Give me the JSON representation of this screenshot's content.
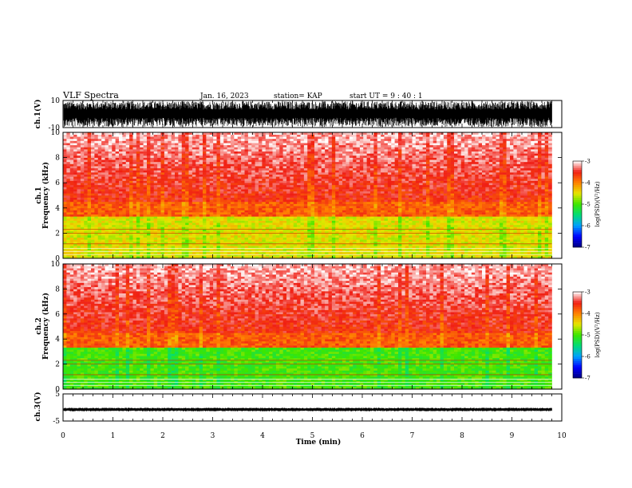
{
  "header": {
    "title": "VLF Spectra",
    "date": "Jan. 16, 2023",
    "station": "station= KAP",
    "start": "start  UT =   9 : 40 : 1"
  },
  "chart_data": [
    {
      "type": "line",
      "panel": "ch1-waveform",
      "ylabel": "ch.1(V)",
      "ylim": [
        -10,
        10
      ],
      "yticks": [
        "10",
        "-10"
      ],
      "xlim": [
        0,
        10
      ],
      "description_values": "dense waveform saturating near full scale"
    },
    {
      "type": "heatmap",
      "panel": "ch1-spectrogram",
      "ylabel": "ch.1\nFrequency (kHz)",
      "ylabel_line1": "ch.1",
      "ylabel_line2": "Frequency (kHz)",
      "ylim": [
        0,
        10
      ],
      "yticks": [
        "0",
        "2",
        "4",
        "6",
        "8",
        "10"
      ],
      "xlim": [
        0,
        9.8
      ],
      "colorbar": {
        "label": "log(PSD)(V²/Hz)",
        "range": [
          -7,
          -3
        ],
        "ticks": [
          "-3",
          "-4",
          "-5",
          "-6",
          "-7"
        ]
      },
      "bands": [
        {
          "from": 0,
          "to": 3.3,
          "level": -4.5
        },
        {
          "from": 3.3,
          "to": 4.5,
          "level": -3.8
        },
        {
          "from": 4.5,
          "to": 10,
          "level": -3.3
        }
      ]
    },
    {
      "type": "heatmap",
      "panel": "ch2-spectrogram",
      "ylabel_line1": "ch.2",
      "ylabel_line2": "Frequency (kHz)",
      "ylim": [
        0,
        10
      ],
      "yticks": [
        "0",
        "2",
        "4",
        "6",
        "8",
        "10"
      ],
      "xlim": [
        0,
        9.8
      ],
      "colorbar": {
        "label": "log(PSD)(V²/Hz)",
        "range": [
          -7,
          -3
        ],
        "ticks": [
          "-3",
          "-4",
          "-5",
          "-6",
          "-7"
        ]
      },
      "bands": [
        {
          "from": 0,
          "to": 3.3,
          "level": -5.0
        },
        {
          "from": 3.3,
          "to": 4.5,
          "level": -3.8
        },
        {
          "from": 4.5,
          "to": 10,
          "level": -3.3
        }
      ]
    },
    {
      "type": "line",
      "panel": "ch3-waveform",
      "ylabel": "ch.3(V)",
      "ylim": [
        -5,
        5
      ],
      "yticks": [
        "5",
        "-5"
      ],
      "xlim": [
        0,
        10
      ],
      "description_values": "flat noisy trace near -1 V"
    }
  ],
  "xaxis": {
    "label": "Time (min)",
    "ticks": [
      "0",
      "1",
      "2",
      "3",
      "4",
      "5",
      "6",
      "7",
      "8",
      "9",
      "10"
    ],
    "xlim": [
      0,
      10
    ]
  }
}
